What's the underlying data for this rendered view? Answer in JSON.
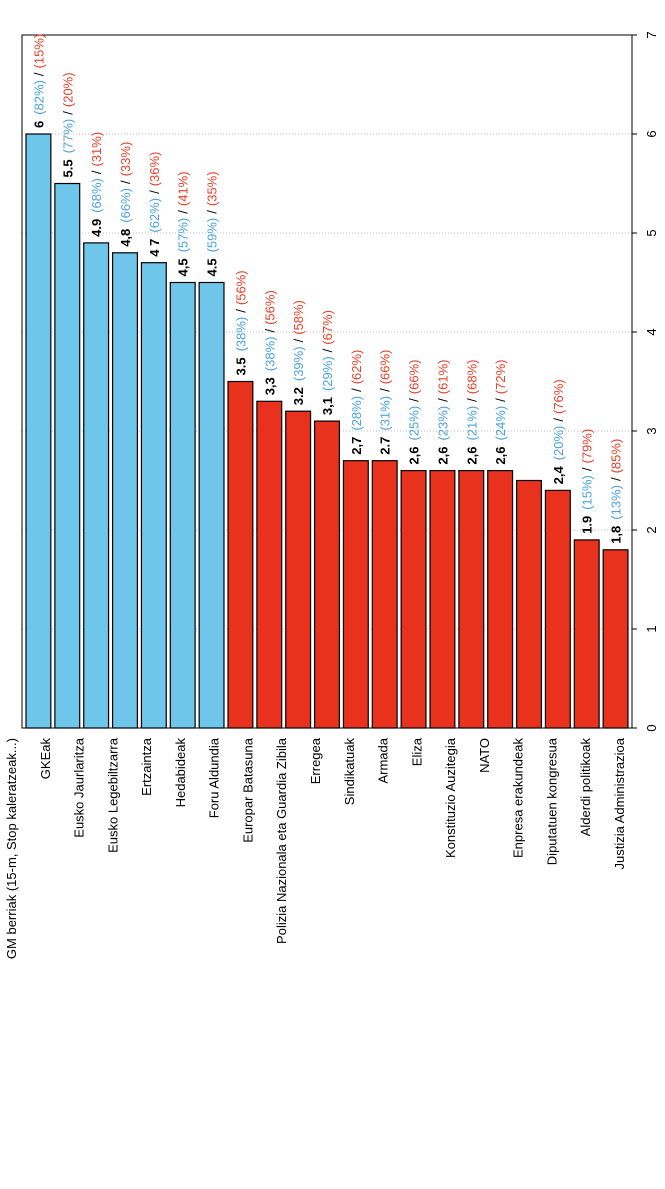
{
  "chart_data": {
    "type": "bar",
    "categories": [
      "GM berriak (15-m, Stop kaleratzeak...)",
      "GKEak",
      "Eusko Jaurlaritza",
      "Eusko  Legebiltzarra",
      "Ertzaintza",
      "Hedabideak",
      "Foru Aldundia",
      "Europar Batasuna",
      "Polizia Nazionala eta Guardia Zibila",
      "Erregea",
      "Sindikatuak",
      "Armada",
      "Eliza",
      "Konstituzio Auzitegia",
      "NATO",
      "Enpresa erakundeak",
      "Diputatuen kongresua",
      "Alderdi politikoak",
      "Justizia Administrazioa",
      null,
      null
    ],
    "values": [
      6,
      5.5,
      4.9,
      4.8,
      4.7,
      4.5,
      4.5,
      3.5,
      3.3,
      3.2,
      3.1,
      2.7,
      2.7,
      2.6,
      2.6,
      2.6,
      2.6,
      2.5,
      2.4,
      1.9,
      1.8
    ],
    "value_labels": [
      "6",
      "5.5",
      "4.9",
      "4,8",
      "4 7",
      "4,5",
      "4.5",
      "3.5",
      "3,3",
      "3.2",
      "3,1",
      "2,7",
      "2.7",
      "2,6",
      "2,6",
      "2,6",
      "2,6",
      null,
      "2,4",
      "1.9",
      "1,8"
    ],
    "pos_labels": [
      "(82%)",
      "(77%)",
      "(68%)",
      "(66%)",
      "(62%)",
      "(57%)",
      "(59%)",
      "(38%)",
      "(38%)",
      "(39%)",
      "(29%)",
      "(28%)",
      "(31%)",
      "(25%)",
      "(23%)",
      "(21%)",
      "(24%)",
      null,
      "(20%)",
      "(15%)",
      "(13%)"
    ],
    "separator": "/",
    "neg_labels": [
      "(15%)",
      "(20%)",
      "(31%)",
      "(33%)",
      "(36%)",
      "(41%)",
      "(35%)",
      "(56%)",
      "(56%)",
      "(58%)",
      "(67%)",
      "(62%)",
      "(66%)",
      "(66%)",
      "(61%)",
      "(68%)",
      "(72%)",
      null,
      "(76%)",
      "(79%)",
      "(85%)"
    ],
    "bar_colors": [
      "#6ec6ea",
      "#6ec6ea",
      "#6ec6ea",
      "#6ec6ea",
      "#6ec6ea",
      "#6ec6ea",
      "#6ec6ea",
      "#e8321e",
      "#e8321e",
      "#e8321e",
      "#e8321e",
      "#e8321e",
      "#e8321e",
      "#e8321e",
      "#e8321e",
      "#e8321e",
      "#e8321e",
      "#e8321e",
      "#e8321e",
      "#e8321e",
      "#e8321e"
    ],
    "ylim": [
      0,
      7
    ],
    "yticks": [
      0,
      1,
      2,
      3,
      4,
      5,
      6,
      7
    ],
    "grid": true
  }
}
